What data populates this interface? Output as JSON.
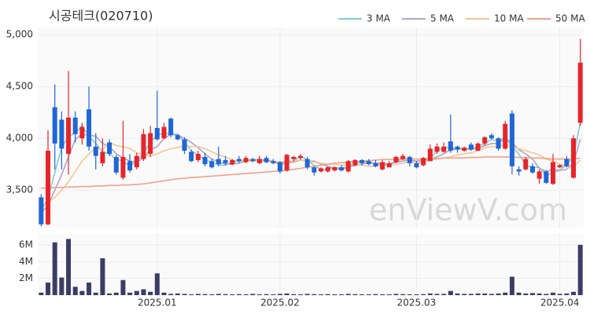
{
  "chart_data": {
    "type": "candlestick",
    "title": "시공테크(020710)",
    "watermark": "enViewV.com",
    "grid": true,
    "up_color": "#e8242a",
    "down_color": "#1f66d8",
    "categories": [
      null,
      null,
      null,
      null,
      null,
      null,
      null,
      null,
      null,
      null,
      null,
      null,
      null,
      null,
      null,
      null,
      null,
      "2025.01",
      null,
      null,
      null,
      null,
      null,
      null,
      null,
      null,
      null,
      null,
      null,
      null,
      null,
      null,
      null,
      null,
      null,
      "2025.02",
      null,
      null,
      null,
      null,
      null,
      null,
      null,
      null,
      null,
      null,
      null,
      null,
      null,
      null,
      null,
      null,
      null,
      null,
      null,
      "2025.03",
      null,
      null,
      null,
      null,
      null,
      null,
      null,
      null,
      null,
      null,
      null,
      null,
      null,
      null,
      null,
      null,
      null,
      null,
      null,
      null,
      "2025.04",
      null,
      null,
      null
    ],
    "open": [
      3430,
      3170,
      4300,
      4180,
      3850,
      4200,
      4000,
      4280,
      3920,
      3760,
      3960,
      3820,
      3620,
      3780,
      3720,
      3800,
      3850,
      4100,
      4000,
      4190,
      4030,
      3990,
      3870,
      3790,
      3820,
      3780,
      3800,
      3790,
      3750,
      3800,
      3770,
      3800,
      3760,
      3810,
      3780,
      3770,
      3690,
      3800,
      3810,
      3800,
      3720,
      3680,
      3680,
      3690,
      3720,
      3680,
      3740,
      3790,
      3780,
      3760,
      3700,
      3720,
      3770,
      3800,
      3820,
      3760,
      3740,
      3780,
      3870,
      3870,
      3970,
      3920,
      3880,
      3940,
      3880,
      3950,
      4030,
      4000,
      3900,
      4240,
      3700,
      3700,
      3730,
      3610,
      3680,
      3560,
      3720,
      3800,
      3620,
      4150
    ],
    "high": [
      3460,
      4080,
      4520,
      4260,
      4650,
      4260,
      4150,
      4500,
      4050,
      4000,
      3990,
      3840,
      4170,
      3850,
      3860,
      4090,
      4120,
      4460,
      4150,
      4200,
      4040,
      4010,
      3890,
      3880,
      3860,
      3800,
      3920,
      3830,
      3800,
      3830,
      3830,
      3810,
      3830,
      3830,
      3800,
      3780,
      3850,
      3830,
      3850,
      3820,
      3730,
      3720,
      3730,
      3730,
      3740,
      3790,
      3800,
      3800,
      3800,
      3790,
      3790,
      3780,
      3830,
      3850,
      3830,
      3780,
      3820,
      3940,
      3950,
      3960,
      4230,
      3930,
      3920,
      3960,
      3960,
      4020,
      4050,
      4010,
      4170,
      4270,
      3730,
      3820,
      3760,
      3700,
      3690,
      3850,
      3750,
      3830,
      4030,
      4960
    ],
    "low": [
      3150,
      3160,
      3700,
      3700,
      3650,
      3960,
      3940,
      3880,
      3700,
      3730,
      3830,
      3650,
      3600,
      3670,
      3700,
      3780,
      3820,
      3980,
      3990,
      4010,
      3980,
      3850,
      3770,
      3770,
      3730,
      3710,
      3730,
      3740,
      3740,
      3760,
      3760,
      3770,
      3750,
      3760,
      3750,
      3660,
      3680,
      3780,
      3790,
      3700,
      3640,
      3670,
      3670,
      3680,
      3680,
      3670,
      3730,
      3740,
      3740,
      3720,
      3690,
      3720,
      3760,
      3790,
      3730,
      3710,
      3730,
      3780,
      3850,
      3860,
      3860,
      3860,
      3870,
      3880,
      3880,
      3930,
      3990,
      3880,
      3890,
      3650,
      3640,
      3690,
      3660,
      3560,
      3560,
      3550,
      3710,
      3720,
      3610,
      4120
    ],
    "close": [
      3170,
      3880,
      3950,
      3900,
      4200,
      4040,
      4110,
      3920,
      3830,
      3870,
      3850,
      3670,
      3820,
      3690,
      3830,
      4040,
      4050,
      3990,
      4110,
      4030,
      3990,
      3880,
      3780,
      3850,
      3750,
      3720,
      3750,
      3760,
      3790,
      3780,
      3810,
      3780,
      3800,
      3770,
      3760,
      3680,
      3840,
      3820,
      3830,
      3720,
      3670,
      3710,
      3720,
      3720,
      3690,
      3780,
      3790,
      3760,
      3750,
      3730,
      3770,
      3760,
      3820,
      3830,
      3760,
      3720,
      3810,
      3900,
      3920,
      3920,
      3880,
      3890,
      3910,
      3890,
      3950,
      4010,
      4000,
      3900,
      4140,
      3730,
      3680,
      3800,
      3670,
      3680,
      3570,
      3770,
      3740,
      3730,
      4000,
      4730
    ],
    "ylim": [
      3130,
      5070
    ],
    "yticks": [
      {
        "value": 3500,
        "label": "3,500"
      },
      {
        "value": 4000,
        "label": "4,000"
      },
      {
        "value": 4500,
        "label": "4,500"
      },
      {
        "value": 5000,
        "label": "5,000"
      }
    ],
    "series": [
      {
        "name": "3 MA",
        "color": "#7fd0d0",
        "values": [
          3300,
          3420,
          3670,
          3910,
          4020,
          4050,
          4120,
          4020,
          3950,
          3870,
          3850,
          3800,
          3780,
          3730,
          3780,
          3850,
          3970,
          4030,
          4050,
          4040,
          4040,
          3970,
          3880,
          3840,
          3790,
          3770,
          3740,
          3740,
          3770,
          3780,
          3790,
          3790,
          3800,
          3780,
          3780,
          3740,
          3760,
          3780,
          3830,
          3790,
          3740,
          3700,
          3700,
          3720,
          3710,
          3730,
          3750,
          3780,
          3770,
          3750,
          3750,
          3750,
          3780,
          3800,
          3800,
          3770,
          3760,
          3810,
          3880,
          3910,
          3910,
          3900,
          3890,
          3900,
          3920,
          3950,
          3990,
          3970,
          4010,
          3920,
          3850,
          3740,
          3720,
          3720,
          3640,
          3670,
          3690,
          3750,
          3820,
          4150
        ]
      },
      {
        "name": "5 MA",
        "color": "#b2a3ca",
        "values": [
          3280,
          3350,
          3500,
          3650,
          3820,
          3990,
          4040,
          4030,
          4020,
          3950,
          3920,
          3850,
          3810,
          3780,
          3770,
          3810,
          3890,
          3920,
          4000,
          4040,
          4030,
          4000,
          3960,
          3910,
          3850,
          3800,
          3770,
          3750,
          3750,
          3760,
          3780,
          3780,
          3790,
          3790,
          3780,
          3760,
          3770,
          3770,
          3790,
          3780,
          3780,
          3750,
          3730,
          3710,
          3700,
          3720,
          3740,
          3750,
          3770,
          3760,
          3760,
          3750,
          3770,
          3780,
          3790,
          3780,
          3790,
          3800,
          3820,
          3850,
          3890,
          3900,
          3900,
          3900,
          3900,
          3930,
          3950,
          3950,
          4000,
          3960,
          3890,
          3850,
          3800,
          3710,
          3680,
          3700,
          3690,
          3700,
          3760,
          3990
        ]
      },
      {
        "name": "10 MA",
        "color": "#f4c690",
        "values": [
          3350,
          3380,
          3430,
          3500,
          3580,
          3680,
          3780,
          3850,
          3910,
          3890,
          3960,
          3930,
          3920,
          3900,
          3860,
          3840,
          3830,
          3850,
          3880,
          3900,
          3910,
          3930,
          3920,
          3920,
          3900,
          3870,
          3840,
          3820,
          3790,
          3780,
          3780,
          3780,
          3780,
          3770,
          3780,
          3770,
          3780,
          3780,
          3790,
          3780,
          3770,
          3760,
          3750,
          3750,
          3740,
          3750,
          3750,
          3740,
          3730,
          3730,
          3740,
          3740,
          3750,
          3760,
          3770,
          3770,
          3770,
          3790,
          3800,
          3810,
          3820,
          3840,
          3850,
          3860,
          3880,
          3910,
          3920,
          3920,
          3940,
          3920,
          3900,
          3880,
          3860,
          3840,
          3800,
          3780,
          3750,
          3730,
          3720,
          3790
        ]
      },
      {
        "name": "50 MA",
        "color": "#f2a08c",
        "values": [
          3520,
          3520,
          3525,
          3525,
          3530,
          3530,
          3535,
          3535,
          3540,
          3540,
          3545,
          3545,
          3550,
          3550,
          3555,
          3560,
          3570,
          3580,
          3590,
          3600,
          3610,
          3615,
          3620,
          3625,
          3630,
          3635,
          3640,
          3645,
          3650,
          3655,
          3660,
          3665,
          3670,
          3675,
          3680,
          3685,
          3690,
          3700,
          3710,
          3720,
          3730,
          3740,
          3750,
          3760,
          3765,
          3770,
          3775,
          3780,
          3785,
          3790,
          3795,
          3795,
          3800,
          3800,
          3800,
          3800,
          3800,
          3805,
          3805,
          3810,
          3810,
          3810,
          3810,
          3815,
          3815,
          3820,
          3820,
          3820,
          3820,
          3820,
          3815,
          3815,
          3810,
          3810,
          3805,
          3800,
          3800,
          3800,
          3800,
          3810
        ]
      }
    ],
    "volume": {
      "color": "#3c3d66",
      "ylim": [
        0,
        7300000
      ],
      "yticks": [
        {
          "value": 2000000,
          "label": "2M"
        },
        {
          "value": 4000000,
          "label": "4M"
        },
        {
          "value": 6000000,
          "label": "6M"
        }
      ],
      "values": [
        300000,
        1500000,
        6300000,
        2100000,
        6700000,
        1000000,
        500000,
        1500000,
        300000,
        4400000,
        200000,
        300000,
        1800000,
        300000,
        500000,
        700000,
        400000,
        2600000,
        300000,
        150000,
        200000,
        150000,
        100000,
        150000,
        120000,
        100000,
        150000,
        120000,
        100000,
        120000,
        100000,
        150000,
        100000,
        120000,
        100000,
        150000,
        200000,
        120000,
        100000,
        150000,
        120000,
        100000,
        120000,
        100000,
        100000,
        150000,
        120000,
        100000,
        100000,
        120000,
        100000,
        100000,
        150000,
        120000,
        100000,
        100000,
        120000,
        200000,
        150000,
        150000,
        500000,
        200000,
        150000,
        150000,
        200000,
        200000,
        150000,
        200000,
        300000,
        2200000,
        300000,
        200000,
        250000,
        200000,
        150000,
        300000,
        150000,
        200000,
        400000,
        6000000
      ]
    }
  }
}
